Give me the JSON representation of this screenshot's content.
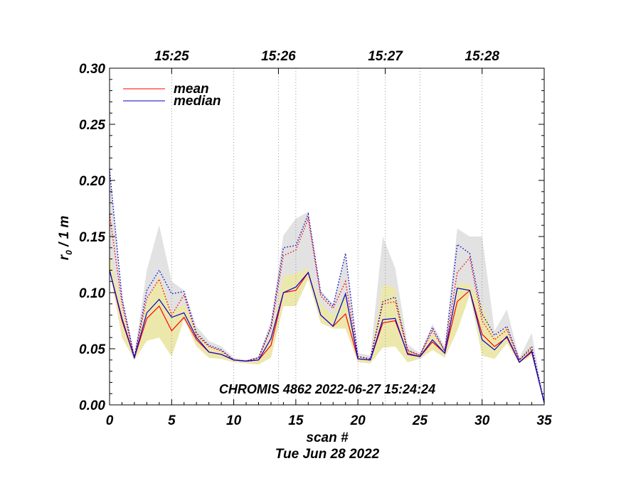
{
  "chart_data": {
    "type": "line",
    "title": "CHROMIS 4862 2022-06-27 15:24:24",
    "xlabel": "scan #",
    "ylabel": "r",
    "ylabel_sub": "0",
    "ylabel_suffix": " / 1 m",
    "date_label": "Tue Jun 28 2022",
    "xlim": [
      0,
      35
    ],
    "ylim": [
      0,
      0.3
    ],
    "x_ticks": [
      0,
      5,
      10,
      15,
      20,
      25,
      30,
      35
    ],
    "x_tick_labels": [
      "0",
      "5",
      "10",
      "15",
      "20",
      "25",
      "30",
      "35"
    ],
    "y_ticks": [
      0,
      0.05,
      0.1,
      0.15,
      0.2,
      0.25,
      0.3
    ],
    "y_tick_labels": [
      "0.00",
      "0.05",
      "0.10",
      "0.15",
      "0.20",
      "0.25",
      "0.30"
    ],
    "top_axis": {
      "ticks": [
        5,
        13.6,
        22.2,
        30
      ],
      "labels": [
        "15:25",
        "15:26",
        "15:27",
        "15:28"
      ]
    },
    "grid_vertical_x": [
      5,
      10,
      15,
      20,
      25,
      30
    ],
    "time_grid_x": [
      5,
      13.6,
      22.2,
      30
    ],
    "legend": [
      {
        "name": "mean",
        "color": "#ff0000"
      },
      {
        "name": "median",
        "color": "#0000cc"
      }
    ],
    "x": [
      0,
      1,
      2,
      3,
      4,
      5,
      6,
      7,
      8,
      9,
      10,
      11,
      12,
      13,
      14,
      15,
      16,
      17,
      18,
      19,
      20,
      21,
      22,
      23,
      24,
      25,
      26,
      27,
      28,
      29,
      30,
      31,
      32,
      33,
      34,
      35
    ],
    "series": [
      {
        "name": "mean",
        "style": "solid",
        "color": "#ff0000",
        "values": [
          0.12,
          0.075,
          0.042,
          0.077,
          0.088,
          0.066,
          0.078,
          0.058,
          0.047,
          0.045,
          0.04,
          0.039,
          0.04,
          0.053,
          0.1,
          0.102,
          0.118,
          0.08,
          0.07,
          0.081,
          0.041,
          0.04,
          0.073,
          0.075,
          0.046,
          0.043,
          0.056,
          0.046,
          0.092,
          0.102,
          0.063,
          0.052,
          0.06,
          0.038,
          0.047,
          0.002
        ]
      },
      {
        "name": "median",
        "style": "solid",
        "color": "#0000cc",
        "values": [
          0.12,
          0.077,
          0.042,
          0.082,
          0.094,
          0.078,
          0.082,
          0.06,
          0.047,
          0.045,
          0.04,
          0.039,
          0.04,
          0.059,
          0.1,
          0.105,
          0.118,
          0.08,
          0.07,
          0.099,
          0.041,
          0.04,
          0.076,
          0.077,
          0.045,
          0.043,
          0.058,
          0.046,
          0.104,
          0.102,
          0.058,
          0.049,
          0.061,
          0.038,
          0.048,
          0.002
        ]
      },
      {
        "name": "mean-dotted",
        "style": "dotted",
        "color": "#ff0000",
        "values": [
          0.17,
          0.09,
          0.042,
          0.095,
          0.112,
          0.08,
          0.098,
          0.062,
          0.052,
          0.048,
          0.04,
          0.039,
          0.042,
          0.068,
          0.133,
          0.138,
          0.166,
          0.097,
          0.086,
          0.11,
          0.043,
          0.041,
          0.09,
          0.092,
          0.048,
          0.044,
          0.066,
          0.048,
          0.118,
          0.131,
          0.075,
          0.058,
          0.067,
          0.04,
          0.05,
          0.002
        ]
      },
      {
        "name": "median-dotted",
        "style": "dotted",
        "color": "#0000cc",
        "values": [
          0.21,
          0.095,
          0.042,
          0.102,
          0.12,
          0.099,
          0.101,
          0.064,
          0.053,
          0.049,
          0.04,
          0.039,
          0.042,
          0.07,
          0.14,
          0.142,
          0.17,
          0.1,
          0.088,
          0.135,
          0.043,
          0.041,
          0.092,
          0.096,
          0.049,
          0.044,
          0.069,
          0.048,
          0.143,
          0.135,
          0.081,
          0.062,
          0.07,
          0.04,
          0.052,
          0.002
        ]
      }
    ],
    "bands": [
      {
        "name": "gray-band",
        "color": "#e2e2e2",
        "upper": [
          0.212,
          0.098,
          0.045,
          0.12,
          0.16,
          0.11,
          0.102,
          0.07,
          0.057,
          0.052,
          0.042,
          0.04,
          0.043,
          0.075,
          0.151,
          0.166,
          0.172,
          0.102,
          0.09,
          0.136,
          0.046,
          0.044,
          0.15,
          0.122,
          0.054,
          0.046,
          0.072,
          0.052,
          0.157,
          0.15,
          0.15,
          0.066,
          0.085,
          0.042,
          0.064,
          0.003
        ],
        "lower": [
          0.12,
          0.06,
          0.04,
          0.06,
          0.07,
          0.045,
          0.078,
          0.052,
          0.042,
          0.041,
          0.038,
          0.037,
          0.036,
          0.045,
          0.088,
          0.088,
          0.112,
          0.073,
          0.068,
          0.069,
          0.038,
          0.037,
          0.051,
          0.052,
          0.038,
          0.041,
          0.049,
          0.042,
          0.07,
          0.1,
          0.044,
          0.041,
          0.055,
          0.037,
          0.044,
          0.002
        ]
      },
      {
        "name": "yellow-band",
        "color": "#ece8ac",
        "upper": [
          0.135,
          0.086,
          0.044,
          0.092,
          0.114,
          0.082,
          0.09,
          0.066,
          0.052,
          0.048,
          0.041,
          0.039,
          0.042,
          0.062,
          0.115,
          0.117,
          0.122,
          0.09,
          0.08,
          0.1,
          0.044,
          0.042,
          0.108,
          0.104,
          0.05,
          0.045,
          0.064,
          0.05,
          0.108,
          0.108,
          0.09,
          0.06,
          0.07,
          0.04,
          0.054,
          0.003
        ],
        "lower": [
          0.12,
          0.06,
          0.04,
          0.057,
          0.06,
          0.043,
          0.076,
          0.052,
          0.042,
          0.041,
          0.038,
          0.037,
          0.036,
          0.042,
          0.088,
          0.088,
          0.112,
          0.073,
          0.068,
          0.068,
          0.038,
          0.037,
          0.051,
          0.052,
          0.038,
          0.041,
          0.049,
          0.042,
          0.066,
          0.098,
          0.044,
          0.041,
          0.055,
          0.037,
          0.044,
          0.002
        ]
      }
    ]
  }
}
